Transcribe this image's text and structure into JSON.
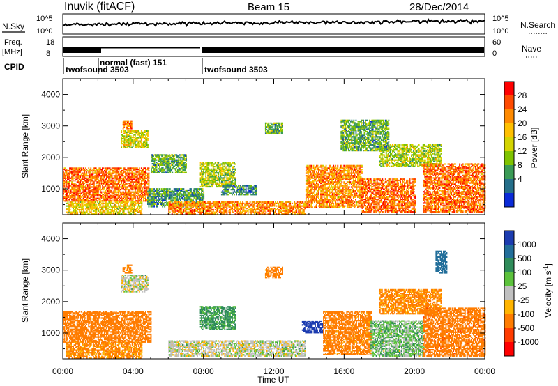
{
  "header": {
    "station": "Inuvik (fitACF)",
    "beam": "Beam 15",
    "date": "28/Dec/2014"
  },
  "summary_panels": {
    "nsky_label": "N.Sky",
    "nsky_ticks": [
      "10^5",
      "10^0"
    ],
    "nsearch_label": "N.Search",
    "nsearch_ticks": [
      "10^5",
      "10^0"
    ],
    "freq_label": "Freq.",
    "freq_unit": "[MHz]",
    "freq_ticks": [
      "18",
      "8"
    ],
    "nave_label": "Nave",
    "nave_ticks": [
      "60",
      "0"
    ],
    "cpid_label": "CPID",
    "cpid_segments": [
      {
        "start": "00:00",
        "end": "02:00",
        "name": "twofsound 3503"
      },
      {
        "start": "02:00",
        "end": "08:00",
        "name": "normal (fast) 151"
      },
      {
        "start": "08:00",
        "end": "24:00",
        "name": "twofsound 3503"
      }
    ]
  },
  "power_panel": {
    "ylabel": "Slant Range [km]",
    "yticks": [
      "4000",
      "3000",
      "2000",
      "1000"
    ],
    "colorbar_label": "Power [dB]",
    "colorbar_ticks": [
      "28",
      "24",
      "20",
      "16",
      "12",
      "8",
      "4"
    ],
    "colorbar_colors": [
      "#ff0000",
      "#ff4a00",
      "#ff8a00",
      "#ffc000",
      "#d4d400",
      "#7fc300",
      "#3a9b56",
      "#256f8a",
      "#0a2ad8"
    ]
  },
  "velocity_panel": {
    "ylabel": "Slant Range [km]",
    "yticks": [
      "4000",
      "3000",
      "2000",
      "1000"
    ],
    "colorbar_label_prefix": "Velocity [m s",
    "colorbar_label_exp": "-1",
    "colorbar_label_suffix": "]",
    "colorbar_ticks": [
      "1000",
      "500",
      "100",
      "25",
      "-25",
      "-100",
      "-500",
      "-1000"
    ],
    "colorbar_colors": [
      "#1c3cb0",
      "#226e9a",
      "#2f8c5a",
      "#5cc23c",
      "#c0c0c0",
      "#ffb400",
      "#ff7c00",
      "#ff3c00",
      "#ff0000"
    ]
  },
  "xaxis": {
    "label": "Time UT",
    "ticks": [
      "00:00",
      "04:00",
      "08:00",
      "12:00",
      "16:00",
      "20:00",
      "00:00"
    ]
  },
  "chart_data": {
    "type": "heatmap",
    "title": "Inuvik (fitACF) Beam 15 28/Dec/2014",
    "xlabel": "Time UT",
    "ylabel": "Slant Range [km]",
    "x_range_hours": [
      0,
      24
    ],
    "y_range_km": [
      180,
      4500
    ],
    "grid": false,
    "colorbars": [
      {
        "label": "Power [dB]",
        "ticks": [
          28,
          24,
          20,
          16,
          12,
          8,
          4
        ]
      },
      {
        "label": "Velocity [m s-1]",
        "ticks": [
          1000,
          500,
          100,
          25,
          -25,
          -100,
          -500,
          -1000
        ]
      }
    ],
    "power_regions": [
      {
        "t0": 0.0,
        "t1": 4.9,
        "r0": 600,
        "r1": 1650,
        "value": 26
      },
      {
        "t0": 0.2,
        "t1": 4.5,
        "r0": 200,
        "r1": 600,
        "value": 18
      },
      {
        "t0": 3.3,
        "t1": 4.8,
        "r0": 2300,
        "r1": 2850,
        "value": 16
      },
      {
        "t0": 3.4,
        "t1": 3.9,
        "r0": 2900,
        "r1": 3150,
        "value": 26
      },
      {
        "t0": 5.0,
        "t1": 7.0,
        "r0": 1500,
        "r1": 2100,
        "value": 10
      },
      {
        "t0": 4.8,
        "t1": 8.0,
        "r0": 420,
        "r1": 1000,
        "value": 8
      },
      {
        "t0": 6.0,
        "t1": 13.8,
        "r0": 200,
        "r1": 600,
        "value": 24
      },
      {
        "t0": 7.8,
        "t1": 9.8,
        "r0": 1050,
        "r1": 1850,
        "value": 14
      },
      {
        "t0": 9.0,
        "t1": 11.0,
        "r0": 800,
        "r1": 1100,
        "value": 6
      },
      {
        "t0": 11.5,
        "t1": 12.5,
        "r0": 2750,
        "r1": 3100,
        "value": 10
      },
      {
        "t0": 13.8,
        "t1": 17.0,
        "r0": 400,
        "r1": 1750,
        "value": 24
      },
      {
        "t0": 17.0,
        "t1": 20.0,
        "r0": 250,
        "r1": 1300,
        "value": 26
      },
      {
        "t0": 18.0,
        "t1": 21.5,
        "r0": 1700,
        "r1": 2400,
        "value": 14
      },
      {
        "t0": 20.5,
        "t1": 24.0,
        "r0": 250,
        "r1": 1800,
        "value": 26
      },
      {
        "t0": 15.8,
        "t1": 18.5,
        "r0": 2200,
        "r1": 3200,
        "value": 10
      }
    ],
    "velocity_regions": [
      {
        "t0": 0.0,
        "t1": 5.0,
        "r0": 700,
        "r1": 1700,
        "value": -180
      },
      {
        "t0": 0.2,
        "t1": 4.5,
        "r0": 200,
        "r1": 700,
        "value": -120
      },
      {
        "t0": 3.3,
        "t1": 4.8,
        "r0": 2300,
        "r1": 2850,
        "value": 0
      },
      {
        "t0": 3.4,
        "t1": 3.9,
        "r0": 2900,
        "r1": 3150,
        "value": -150
      },
      {
        "t0": 6.0,
        "t1": 13.8,
        "r0": 250,
        "r1": 750,
        "value": 0
      },
      {
        "t0": 7.8,
        "t1": 9.8,
        "r0": 1100,
        "r1": 1850,
        "value": 80
      },
      {
        "t0": 11.5,
        "t1": 12.5,
        "r0": 2750,
        "r1": 3100,
        "value": -150
      },
      {
        "t0": 13.6,
        "t1": 14.8,
        "r0": 1000,
        "r1": 1400,
        "value": 900
      },
      {
        "t0": 14.8,
        "t1": 17.5,
        "r0": 300,
        "r1": 1700,
        "value": -150
      },
      {
        "t0": 17.5,
        "t1": 20.5,
        "r0": 250,
        "r1": 1400,
        "value": 40
      },
      {
        "t0": 18.0,
        "t1": 21.5,
        "r0": 1600,
        "r1": 2400,
        "value": -120
      },
      {
        "t0": 20.5,
        "t1": 24.0,
        "r0": 250,
        "r1": 1800,
        "value": -250
      },
      {
        "t0": 21.2,
        "t1": 21.8,
        "r0": 2900,
        "r1": 3600,
        "value": 400
      }
    ]
  }
}
